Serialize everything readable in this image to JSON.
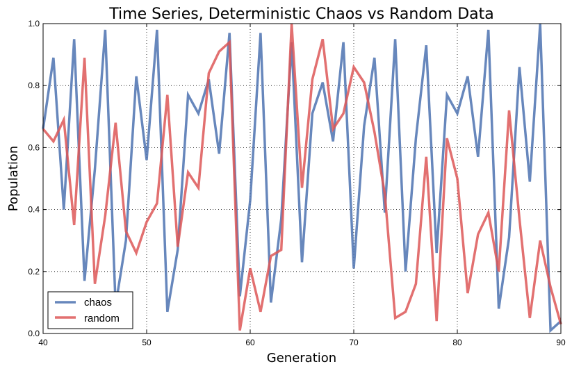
{
  "chart_data": {
    "type": "line",
    "title": "Time Series, Deterministic Chaos vs Random Data",
    "xlabel": "Generation",
    "ylabel": "Population",
    "xlim": [
      40,
      90
    ],
    "ylim": [
      0.0,
      1.0
    ],
    "grid": true,
    "legend_position": "lower-left",
    "x_ticks": [
      "40",
      "50",
      "60",
      "70",
      "80",
      "90"
    ],
    "y_ticks": [
      "0.0",
      "0.2",
      "0.4",
      "0.6",
      "0.8",
      "1.0"
    ],
    "x": [
      40,
      41,
      42,
      43,
      44,
      45,
      46,
      47,
      48,
      49,
      50,
      51,
      52,
      53,
      54,
      55,
      56,
      57,
      58,
      59,
      60,
      61,
      62,
      63,
      64,
      65,
      66,
      67,
      68,
      69,
      70,
      71,
      72,
      73,
      74,
      75,
      76,
      77,
      78,
      79,
      80,
      81,
      82,
      83,
      84,
      85,
      86,
      87,
      88,
      89,
      90
    ],
    "series": [
      {
        "name": "chaos",
        "color": "#4c72b0",
        "values": [
          0.66,
          0.89,
          0.4,
          0.95,
          0.17,
          0.53,
          0.98,
          0.09,
          0.3,
          0.83,
          0.56,
          0.98,
          0.07,
          0.27,
          0.77,
          0.71,
          0.82,
          0.58,
          0.97,
          0.12,
          0.43,
          0.97,
          0.1,
          0.37,
          0.94,
          0.23,
          0.71,
          0.81,
          0.62,
          0.94,
          0.21,
          0.67,
          0.89,
          0.39,
          0.95,
          0.2,
          0.63,
          0.93,
          0.26,
          0.77,
          0.71,
          0.83,
          0.57,
          0.98,
          0.08,
          0.31,
          0.86,
          0.49,
          1.0,
          0.01,
          0.04
        ]
      },
      {
        "name": "random",
        "color": "#dd5757",
        "values": [
          0.66,
          0.62,
          0.69,
          0.35,
          0.89,
          0.16,
          0.38,
          0.68,
          0.33,
          0.26,
          0.36,
          0.42,
          0.77,
          0.28,
          0.52,
          0.47,
          0.84,
          0.91,
          0.94,
          0.01,
          0.21,
          0.07,
          0.25,
          0.27,
          1.0,
          0.47,
          0.82,
          0.95,
          0.66,
          0.71,
          0.86,
          0.81,
          0.65,
          0.45,
          0.05,
          0.07,
          0.16,
          0.57,
          0.04,
          0.63,
          0.5,
          0.13,
          0.32,
          0.39,
          0.2,
          0.72,
          0.37,
          0.05,
          0.3,
          0.15,
          0.03
        ]
      }
    ]
  }
}
